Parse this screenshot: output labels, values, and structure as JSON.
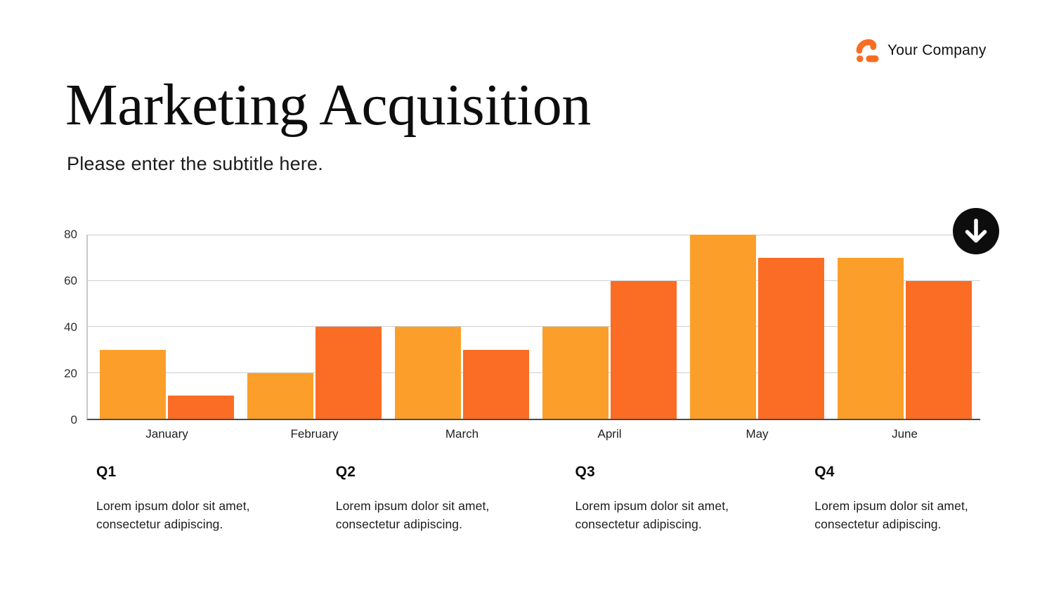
{
  "header": {
    "company_name": "Your Company"
  },
  "hero": {
    "title": "Marketing Acquisition",
    "subtitle": "Please enter the subtitle here."
  },
  "chart_data": {
    "type": "bar",
    "title": "",
    "xlabel": "",
    "ylabel": "",
    "categories": [
      "January",
      "February",
      "March",
      "April",
      "May",
      "June"
    ],
    "series": [
      {
        "name": "series-1",
        "color": "#FC9F2A",
        "values": [
          30,
          20,
          40,
          40,
          80,
          70
        ]
      },
      {
        "name": "series-2",
        "color": "#FB6C24",
        "values": [
          10,
          40,
          30,
          60,
          70,
          60
        ]
      }
    ],
    "ylim": [
      0,
      80
    ],
    "yticks": [
      0,
      20,
      40,
      60,
      80
    ],
    "grid": true,
    "legend_position": "none"
  },
  "quarters": [
    {
      "label": "Q1",
      "body": "Lorem ipsum dolor sit amet,\nconsectetur adipiscing."
    },
    {
      "label": "Q2",
      "body": "Lorem ipsum dolor sit amet,\nconsectetur adipiscing."
    },
    {
      "label": "Q3",
      "body": "Lorem ipsum dolor sit amet,\nconsectetur adipiscing."
    },
    {
      "label": "Q4",
      "body": "Lorem ipsum dolor sit amet,\nconsectetur adipiscing."
    }
  ],
  "icons": {
    "logo": "company-logo-icon",
    "download": "down-arrow-icon"
  },
  "colors": {
    "accent_light": "#FC9F2A",
    "accent_dark": "#FB6C24",
    "logo_orange": "#F96E23",
    "gridline": "#CFCFCF",
    "axis": "#4B4B4B",
    "text": "#141414"
  }
}
